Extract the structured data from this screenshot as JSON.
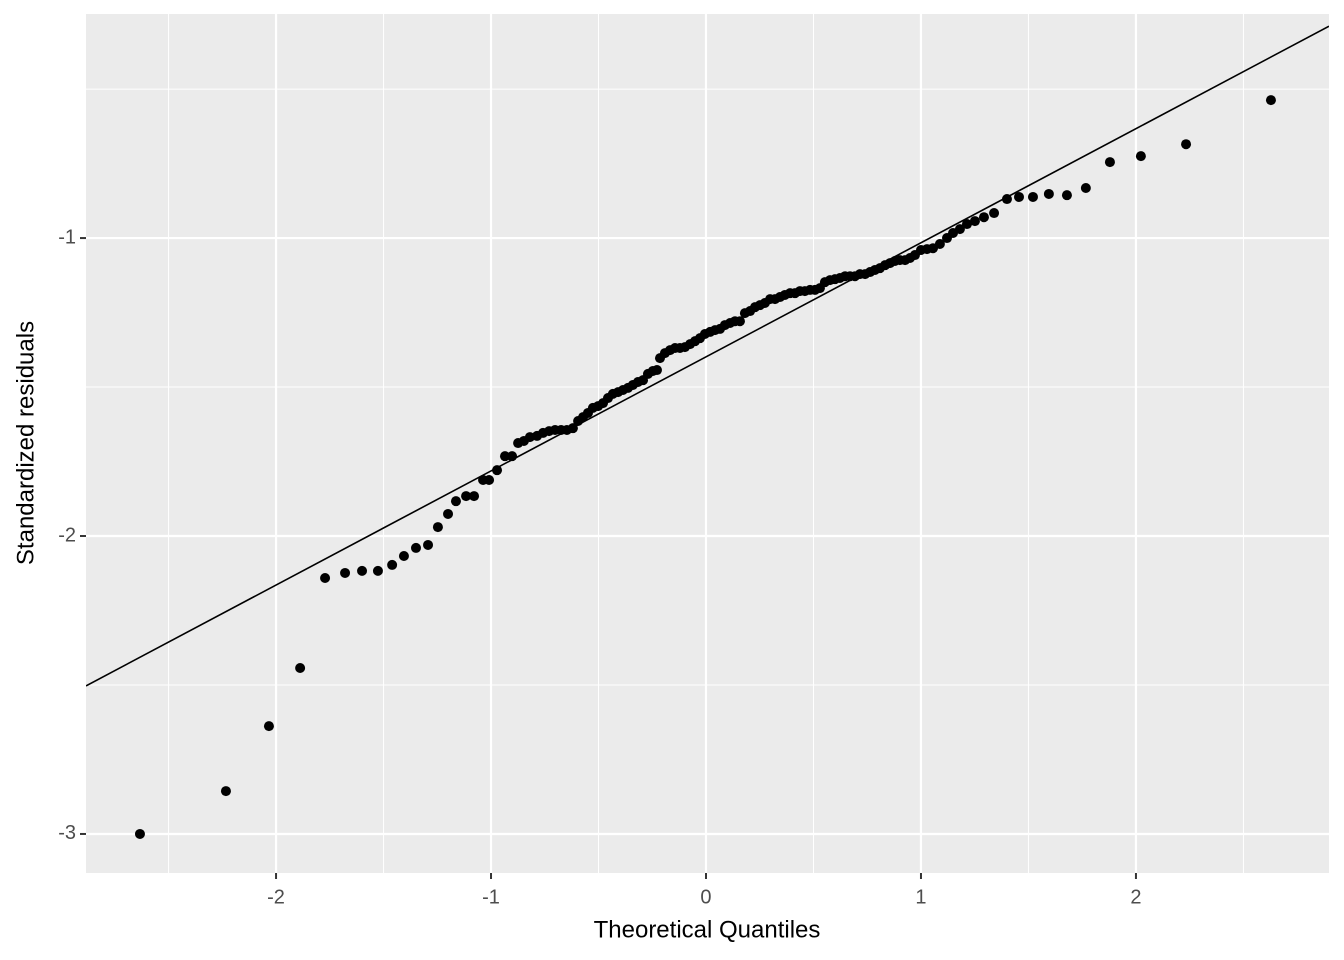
{
  "chart_data": {
    "type": "scatter",
    "x_label": "Theoretical Quantiles",
    "y_label": "Standardized residuals",
    "xlim": [
      -2.884,
      2.898
    ],
    "ylim": [
      -3.131,
      -0.248
    ],
    "xticks": [
      -2,
      -1,
      0,
      1,
      2
    ],
    "yticks": [
      -3,
      -2,
      -1
    ],
    "minor_xticks": [
      -2.5,
      -1.5,
      -0.5,
      0.5,
      1.5,
      2.5
    ],
    "minor_yticks": [
      -2.5,
      -1.5,
      -0.5
    ],
    "grid": true,
    "color": "#000000",
    "reference_line": {
      "x": [
        -2.884,
        2.898
      ],
      "y": [
        -2.503,
        -0.289
      ],
      "color": "#000000"
    },
    "x": [
      -2.633,
      -2.233,
      -2.033,
      -1.888,
      -1.772,
      -1.679,
      -1.6,
      -1.526,
      -1.46,
      -1.405,
      -1.349,
      -1.293,
      -1.247,
      -1.2,
      -1.163,
      -1.116,
      -1.079,
      -1.037,
      -1.009,
      -0.972,
      -0.935,
      -0.902,
      -0.874,
      -0.847,
      -0.819,
      -0.786,
      -0.758,
      -0.73,
      -0.702,
      -0.674,
      -0.647,
      -0.619,
      -0.595,
      -0.572,
      -0.549,
      -0.526,
      -0.502,
      -0.479,
      -0.456,
      -0.433,
      -0.409,
      -0.386,
      -0.363,
      -0.34,
      -0.316,
      -0.293,
      -0.27,
      -0.247,
      -0.228,
      -0.214,
      -0.191,
      -0.167,
      -0.144,
      -0.121,
      -0.098,
      -0.074,
      -0.051,
      -0.028,
      -0.005,
      0.019,
      0.042,
      0.065,
      0.088,
      0.112,
      0.135,
      0.158,
      0.181,
      0.205,
      0.228,
      0.251,
      0.274,
      0.298,
      0.321,
      0.344,
      0.367,
      0.391,
      0.414,
      0.437,
      0.46,
      0.484,
      0.507,
      0.53,
      0.553,
      0.577,
      0.6,
      0.623,
      0.647,
      0.67,
      0.693,
      0.716,
      0.74,
      0.763,
      0.786,
      0.809,
      0.833,
      0.856,
      0.879,
      0.902,
      0.926,
      0.949,
      0.972,
      1.0,
      1.028,
      1.056,
      1.088,
      1.121,
      1.149,
      1.181,
      1.214,
      1.251,
      1.293,
      1.34,
      1.4,
      1.456,
      1.521,
      1.595,
      1.679,
      1.767,
      1.879,
      2.023,
      2.233,
      2.628
    ],
    "values": [
      -3.0,
      -2.856,
      -2.638,
      -2.443,
      -2.141,
      -2.124,
      -2.117,
      -2.117,
      -2.097,
      -2.067,
      -2.04,
      -2.03,
      -1.97,
      -1.926,
      -1.883,
      -1.866,
      -1.866,
      -1.812,
      -1.812,
      -1.779,
      -1.732,
      -1.732,
      -1.688,
      -1.681,
      -1.668,
      -1.664,
      -1.654,
      -1.648,
      -1.644,
      -1.644,
      -1.644,
      -1.638,
      -1.614,
      -1.601,
      -1.587,
      -1.57,
      -1.564,
      -1.554,
      -1.537,
      -1.523,
      -1.517,
      -1.51,
      -1.503,
      -1.493,
      -1.483,
      -1.477,
      -1.456,
      -1.446,
      -1.443,
      -1.403,
      -1.386,
      -1.376,
      -1.369,
      -1.369,
      -1.366,
      -1.356,
      -1.346,
      -1.336,
      -1.322,
      -1.315,
      -1.309,
      -1.305,
      -1.292,
      -1.285,
      -1.279,
      -1.279,
      -1.252,
      -1.245,
      -1.232,
      -1.225,
      -1.218,
      -1.205,
      -1.205,
      -1.198,
      -1.191,
      -1.185,
      -1.185,
      -1.178,
      -1.178,
      -1.174,
      -1.174,
      -1.168,
      -1.148,
      -1.141,
      -1.138,
      -1.134,
      -1.128,
      -1.128,
      -1.128,
      -1.121,
      -1.121,
      -1.114,
      -1.107,
      -1.101,
      -1.091,
      -1.084,
      -1.077,
      -1.074,
      -1.074,
      -1.067,
      -1.057,
      -1.04,
      -1.037,
      -1.034,
      -1.02,
      -1.0,
      -0.983,
      -0.97,
      -0.953,
      -0.943,
      -0.93,
      -0.916,
      -0.869,
      -0.862,
      -0.862,
      -0.852,
      -0.856,
      -0.832,
      -0.745,
      -0.725,
      -0.685,
      -0.537
    ]
  }
}
